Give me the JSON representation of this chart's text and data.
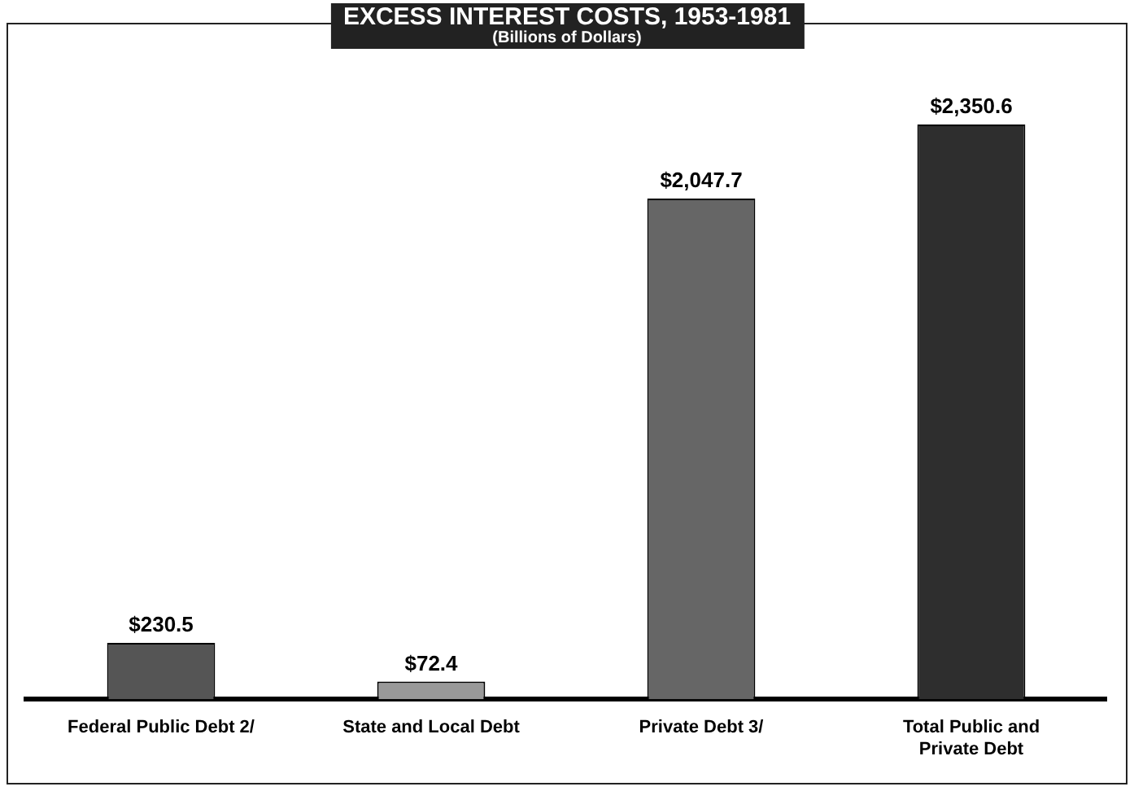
{
  "chart_data": {
    "type": "bar",
    "title": "EXCESS INTEREST COSTS, 1953-1981",
    "subtitle": "(Billions of Dollars)",
    "categories": [
      "Federal Public Debt 2/",
      "State and Local Debt",
      "Private Debt 3/",
      "Total Public and Private Debt"
    ],
    "values": [
      230.5,
      72.4,
      2047.7,
      2350.6
    ],
    "colors": [
      "#555555",
      "#999999",
      "#666666",
      "#2e2e2e"
    ],
    "value_labels": [
      "$230.5",
      "$72.4",
      "$2,047.7",
      "$2,350.6"
    ],
    "grid": false,
    "legend": false
  }
}
